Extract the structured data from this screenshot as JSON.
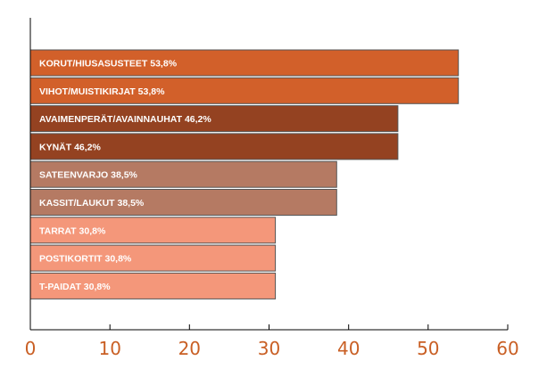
{
  "chart_data": {
    "type": "bar",
    "orientation": "horizontal",
    "title": "",
    "xlabel": "",
    "ylabel": "",
    "xlim": [
      0,
      60
    ],
    "x_ticks": [
      0,
      10,
      20,
      30,
      40,
      50,
      60
    ],
    "grid": false,
    "legend": "none",
    "bars": [
      {
        "label": "KORUT/HIUSASUSTEET 53,8%",
        "value": 53.8,
        "color": "#d2602a"
      },
      {
        "label": "VIHOT/MUISTIKIRJAT 53,8%",
        "value": 53.8,
        "color": "#d2602a"
      },
      {
        "label": "AVAIMENPERÄT/AVAINNAUHAT 46,2%",
        "value": 46.2,
        "color": "#944221"
      },
      {
        "label": "KYNÄT 46,2%",
        "value": 46.2,
        "color": "#944221"
      },
      {
        "label": "SATEENVARJO 38,5%",
        "value": 38.5,
        "color": "#b57a63"
      },
      {
        "label": "KASSIT/LAUKUT 38,5%",
        "value": 38.5,
        "color": "#b57a63"
      },
      {
        "label": "TARRAT 30,8%",
        "value": 30.8,
        "color": "#f4977a"
      },
      {
        "label": "POSTIKORTIT 30,8%",
        "value": 30.8,
        "color": "#f4977a"
      },
      {
        "label": "T-PAIDAT 30,8%",
        "value": 30.8,
        "color": "#f4977a"
      }
    ],
    "colors": {
      "axis": "#000000",
      "tick_label": "#c95f24",
      "bar_text": "#ffffff"
    }
  }
}
